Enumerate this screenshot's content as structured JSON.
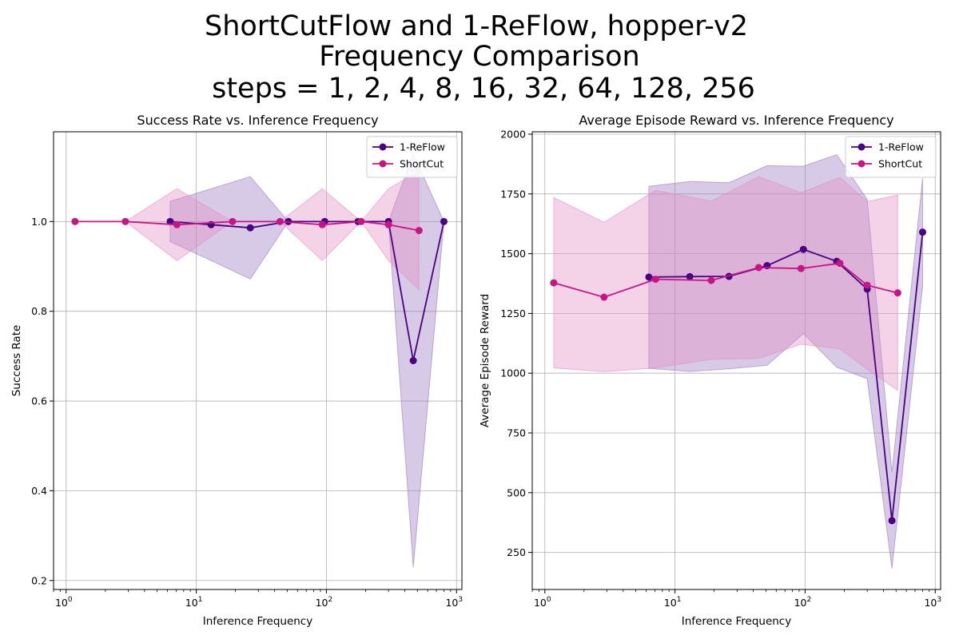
{
  "figure": {
    "title_lines": [
      "ShortCutFlow and 1-ReFlow, hopper-v2",
      "Frequency Comparison",
      "steps = 1, 2, 4, 8, 16, 32, 64, 128, 256"
    ]
  },
  "colors": {
    "reflow": "#4b0082",
    "reflow_band": "#9b7bc0",
    "shortcut": "#c71585",
    "shortcut_band": "#e48fc4",
    "grid": "#b0b0b0"
  },
  "chart_data": [
    {
      "type": "line",
      "title": "Success Rate vs. Inference Frequency",
      "xlabel": "Inference Frequency",
      "ylabel": "Success Rate",
      "xscale": "log",
      "xlim": [
        0.8,
        1100
      ],
      "ylim": [
        0.18,
        1.2
      ],
      "xticks": [
        1,
        10,
        100,
        1000
      ],
      "xtick_labels": [
        {
          "base": "10",
          "exp": "0"
        },
        {
          "base": "10",
          "exp": "1"
        },
        {
          "base": "10",
          "exp": "2"
        },
        {
          "base": "10",
          "exp": "3"
        }
      ],
      "yticks": [
        0.2,
        0.4,
        0.6,
        0.8,
        1.0
      ],
      "ytick_labels": [
        "0.2",
        "0.4",
        "0.6",
        "0.8",
        "1.0"
      ],
      "grid": true,
      "legend": "top-right",
      "series": [
        {
          "name": "1-ReFlow",
          "color_key": "reflow",
          "band_key": "reflow_band",
          "x": [
            6.3,
            13,
            26,
            51,
            97,
            175,
            300,
            465,
            800
          ],
          "y": [
            1.0,
            0.993,
            0.986,
            1.0,
            1.0,
            1.0,
            1.0,
            0.69,
            1.0
          ],
          "lower": [
            0.955,
            0.913,
            0.872,
            1.0,
            1.0,
            1.0,
            1.0,
            0.23,
            1.0
          ],
          "upper": [
            1.045,
            1.073,
            1.1,
            1.0,
            1.0,
            1.0,
            1.0,
            1.15,
            1.0
          ]
        },
        {
          "name": "ShortCut",
          "color_key": "shortcut",
          "band_key": "shortcut_band",
          "x": [
            1.17,
            2.85,
            7.1,
            19,
            44,
            93,
            185,
            300,
            515
          ],
          "y": [
            1.0,
            1.0,
            0.993,
            1.0,
            1.0,
            0.993,
            1.0,
            0.993,
            0.98
          ],
          "lower": [
            1.0,
            1.0,
            0.913,
            1.0,
            1.0,
            0.913,
            1.0,
            0.913,
            0.848
          ],
          "upper": [
            1.0,
            1.0,
            1.073,
            1.0,
            1.0,
            1.073,
            1.0,
            1.073,
            1.112
          ]
        }
      ]
    },
    {
      "type": "line",
      "title": "Average Episode Reward vs. Inference Frequency",
      "xlabel": "Inference Frequency",
      "ylabel": "Average Episode Reward",
      "xscale": "log",
      "xlim": [
        0.8,
        1100
      ],
      "ylim": [
        95,
        2010
      ],
      "xticks": [
        1,
        10,
        100,
        1000
      ],
      "xtick_labels": [
        {
          "base": "10",
          "exp": "0"
        },
        {
          "base": "10",
          "exp": "1"
        },
        {
          "base": "10",
          "exp": "2"
        },
        {
          "base": "10",
          "exp": "3"
        }
      ],
      "yticks": [
        250,
        500,
        750,
        1000,
        1250,
        1500,
        1750,
        2000
      ],
      "ytick_labels": [
        "250",
        "500",
        "750",
        "1000",
        "1250",
        "1500",
        "1750",
        "2000"
      ],
      "grid": true,
      "legend": "top-right",
      "series": [
        {
          "name": "1-ReFlow",
          "color_key": "reflow",
          "band_key": "reflow_band",
          "x": [
            6.3,
            13,
            26,
            51,
            97,
            175,
            300,
            465,
            800
          ],
          "y": [
            1402,
            1404,
            1405,
            1450,
            1518,
            1468,
            1352,
            383,
            1590
          ],
          "lower": [
            1020,
            1007,
            1018,
            1033,
            1165,
            1025,
            977,
            183,
            1365
          ],
          "upper": [
            1782,
            1802,
            1797,
            1868,
            1866,
            1914,
            1727,
            585,
            1815
          ]
        },
        {
          "name": "ShortCut",
          "color_key": "shortcut",
          "band_key": "shortcut_band",
          "x": [
            1.17,
            2.85,
            7.1,
            19,
            44,
            93,
            185,
            300,
            515
          ],
          "y": [
            1378,
            1318,
            1393,
            1388,
            1442,
            1438,
            1460,
            1368,
            1336
          ],
          "lower": [
            1022,
            1006,
            1022,
            1058,
            1062,
            1121,
            1102,
            1016,
            928
          ],
          "upper": [
            1735,
            1631,
            1765,
            1720,
            1822,
            1755,
            1820,
            1718,
            1745
          ]
        }
      ]
    }
  ]
}
